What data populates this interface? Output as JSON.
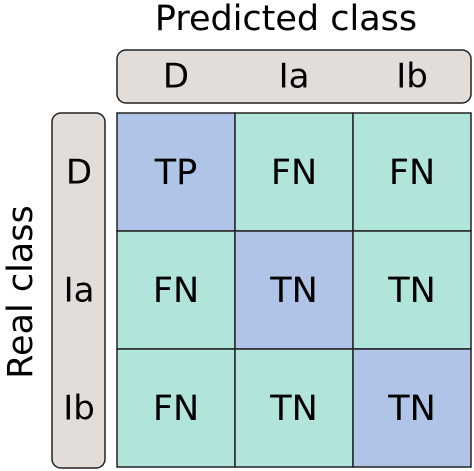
{
  "header": {
    "title": "Predicted class",
    "columns": [
      "D",
      "Ia",
      "Ib"
    ]
  },
  "side": {
    "title": "Real class",
    "rows": [
      "D",
      "Ia",
      "Ib"
    ]
  },
  "table": {
    "rows": [
      [
        "TP",
        "FN",
        "FN"
      ],
      [
        "FN",
        "TN",
        "TN"
      ],
      [
        "FN",
        "TN",
        "TN"
      ]
    ]
  }
}
